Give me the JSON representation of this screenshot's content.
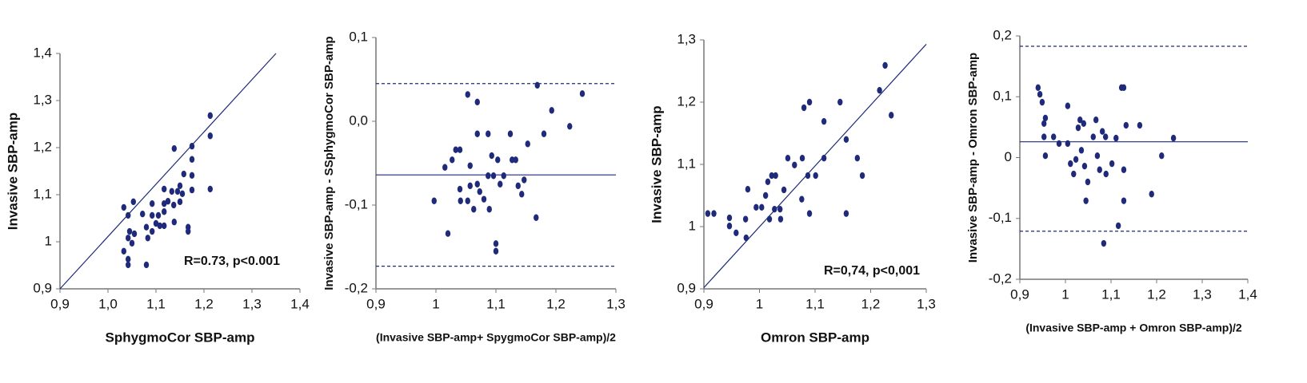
{
  "chart_data": [
    {
      "type": "scatter",
      "x_label": "SphygmoCor SBP-amp",
      "y_label": "Invasive SBP-amp",
      "annotation": "R=0.73, p<0.001",
      "color": "#1f2a7a",
      "xlim": [
        0.9,
        1.4
      ],
      "ylim": [
        0.9,
        1.4
      ],
      "xticks": [
        {
          "value": 0.9,
          "label": "0,9"
        },
        {
          "value": 1.0,
          "label": "1,0"
        },
        {
          "value": 1.1,
          "label": "1,1"
        },
        {
          "value": 1.2,
          "label": "1,2"
        },
        {
          "value": 1.3,
          "label": "1,3"
        },
        {
          "value": 1.4,
          "label": "1,4"
        }
      ],
      "yticks": [
        {
          "value": 0.9,
          "label": "0,9"
        },
        1,
        {
          "value": 1.1,
          "label": "1,1"
        },
        {
          "value": 1.2,
          "label": "1,2"
        },
        {
          "value": 1.3,
          "label": "1,3"
        },
        {
          "value": 1.4,
          "label": "1,4"
        }
      ],
      "fit_line": {
        "x": [
          0.9,
          1.35
        ],
        "y": [
          0.9,
          1.4
        ]
      },
      "x": [
        1.033,
        1.053,
        1.042,
        1.045,
        1.042,
        1.05,
        1.033,
        1.042,
        1.042,
        1.055,
        1.072,
        1.08,
        1.083,
        1.08,
        1.092,
        1.092,
        1.092,
        1.1,
        1.105,
        1.108,
        1.117,
        1.117,
        1.117,
        1.117,
        1.125,
        1.133,
        1.137,
        1.138,
        1.138,
        1.145,
        1.15,
        1.15,
        1.155,
        1.158,
        1.167,
        1.167,
        1.175,
        1.175,
        1.175,
        1.175,
        1.213,
        1.213,
        1.213
      ],
      "values": [
        1.073,
        1.085,
        1.056,
        1.022,
        1.008,
        0.997,
        0.98,
        0.963,
        0.951,
        1.017,
        1.059,
        1.031,
        1.008,
        0.951,
        1.081,
        1.056,
        1.022,
        1.039,
        1.056,
        1.034,
        1.034,
        1.064,
        1.081,
        1.112,
        1.086,
        1.107,
        1.078,
        1.042,
        1.198,
        1.107,
        1.085,
        1.119,
        1.102,
        1.144,
        1.022,
        1.031,
        1.11,
        1.175,
        1.203,
        1.141,
        1.225,
        1.268,
        1.112
      ]
    },
    {
      "type": "bland-altman",
      "x_label": "(Invasive SBP-amp+ SpygmoCor SBP-amp)/2",
      "y_label": "Invasive SBP-amp - SSphygmoCor SBP-amp",
      "color": "#1f2a7a",
      "xlim": [
        0.9,
        1.3
      ],
      "ylim": [
        -0.2,
        0.1
      ],
      "xticks": [
        {
          "value": 0.9,
          "label": "0,9"
        },
        1,
        {
          "value": 1.1,
          "label": "1,1"
        },
        {
          "value": 1.2,
          "label": "1,2"
        },
        {
          "value": 1.3,
          "label": "1,3"
        }
      ],
      "yticks": [
        {
          "value": 0.1,
          "label": "0,1"
        },
        {
          "value": 0.0,
          "label": "0,0"
        },
        {
          "value": -0.1,
          "label": "-0,1"
        },
        {
          "value": -0.2,
          "label": "-0,2"
        }
      ],
      "mean": -0.064,
      "upper_limit": 0.045,
      "lower_limit": -0.173,
      "x": [
        0.997,
        1.015,
        1.02,
        1.027,
        1.033,
        1.04,
        1.04,
        1.041,
        1.053,
        1.053,
        1.057,
        1.057,
        1.063,
        1.069,
        1.069,
        1.069,
        1.073,
        1.08,
        1.087,
        1.087,
        1.089,
        1.093,
        1.096,
        1.1,
        1.1,
        1.103,
        1.107,
        1.113,
        1.124,
        1.127,
        1.133,
        1.137,
        1.143,
        1.147,
        1.153,
        1.167,
        1.169,
        1.18,
        1.193,
        1.223,
        1.244
      ],
      "values": [
        -0.095,
        -0.055,
        -0.134,
        -0.046,
        -0.034,
        -0.034,
        -0.081,
        -0.095,
        -0.095,
        0.032,
        -0.077,
        -0.053,
        -0.105,
        0.023,
        -0.015,
        -0.075,
        -0.084,
        -0.093,
        -0.065,
        -0.015,
        -0.105,
        -0.041,
        -0.065,
        -0.155,
        -0.146,
        -0.046,
        -0.075,
        -0.065,
        -0.015,
        -0.046,
        -0.046,
        -0.077,
        -0.087,
        -0.07,
        -0.027,
        -0.115,
        0.043,
        -0.015,
        0.013,
        -0.006,
        0.033
      ]
    },
    {
      "type": "scatter",
      "x_label": "Omron SBP-amp",
      "y_label": "Invasive SBP-amp",
      "annotation": "R=0,74, p<0,001",
      "color": "#1f2a7a",
      "xlim": [
        0.9,
        1.3
      ],
      "ylim": [
        0.9,
        1.3
      ],
      "xticks": [
        {
          "value": 0.9,
          "label": "0,9"
        },
        1,
        {
          "value": 1.1,
          "label": "1,1"
        },
        {
          "value": 1.2,
          "label": "1,2"
        },
        {
          "value": 1.3,
          "label": "1,3"
        }
      ],
      "yticks": [
        {
          "value": 0.9,
          "label": "0,9"
        },
        1,
        {
          "value": 1.1,
          "label": "1,1"
        },
        {
          "value": 1.2,
          "label": "1,2"
        },
        {
          "value": 1.3,
          "label": "1,3"
        }
      ],
      "fit_line": {
        "x": [
          0.9,
          1.3
        ],
        "y": [
          0.902,
          1.293
        ]
      },
      "x": [
        0.907,
        0.918,
        0.946,
        0.946,
        0.958,
        0.975,
        0.976,
        0.979,
        0.994,
        1.004,
        1.011,
        1.015,
        1.018,
        1.022,
        1.027,
        1.029,
        1.037,
        1.038,
        1.044,
        1.051,
        1.063,
        1.076,
        1.077,
        1.08,
        1.087,
        1.09,
        1.09,
        1.101,
        1.116,
        1.116,
        1.145,
        1.156,
        1.156,
        1.176,
        1.185,
        1.216,
        1.226,
        1.237
      ],
      "values": [
        1.021,
        1.021,
        1.014,
        1.001,
        0.99,
        1.012,
        0.982,
        1.06,
        1.031,
        1.031,
        1.05,
        1.072,
        1.012,
        1.082,
        1.028,
        1.082,
        1.028,
        1.012,
        1.059,
        1.11,
        1.099,
        1.044,
        1.11,
        1.191,
        1.082,
        1.021,
        1.2,
        1.082,
        1.11,
        1.169,
        1.2,
        1.021,
        1.14,
        1.11,
        1.082,
        1.219,
        1.259,
        1.179
      ]
    },
    {
      "type": "bland-altman",
      "x_label": "(Invasive SBP-amp + Omron SBP-amp)/2",
      "y_label": "Invasive SBP-amp - Omron SBP-amp",
      "color": "#1f2a7a",
      "xlim": [
        0.9,
        1.4
      ],
      "ylim": [
        -0.2,
        0.2
      ],
      "xticks": [
        {
          "value": 0.9,
          "label": "0,9"
        },
        1,
        {
          "value": 1.1,
          "label": "1,1"
        },
        {
          "value": 1.2,
          "label": "1,2"
        },
        {
          "value": 1.3,
          "label": "1,3"
        },
        {
          "value": 1.4,
          "label": "1,4"
        }
      ],
      "yticks": [
        {
          "value": 0.2,
          "label": "0,2"
        },
        {
          "value": 0.1,
          "label": "0,1"
        },
        0,
        {
          "value": -0.1,
          "label": "-0,1"
        },
        {
          "value": -0.2,
          "label": "-0,2"
        }
      ],
      "mean": 0.026,
      "upper_limit": 0.183,
      "lower_limit": -0.121,
      "x": [
        0.94,
        0.944,
        0.949,
        0.953,
        0.956,
        0.953,
        0.956,
        0.974,
        0.986,
        1.005,
        1.005,
        1.011,
        1.018,
        1.023,
        1.028,
        1.032,
        1.035,
        1.04,
        1.042,
        1.045,
        1.049,
        1.061,
        1.067,
        1.07,
        1.075,
        1.081,
        1.084,
        1.088,
        1.089,
        1.102,
        1.111,
        1.116,
        1.123,
        1.128,
        1.128,
        1.128,
        1.133,
        1.163,
        1.189,
        1.211,
        1.237
      ],
      "values": [
        0.115,
        0.104,
        0.091,
        0.056,
        0.065,
        0.034,
        0.003,
        0.034,
        0.023,
        0.085,
        0.023,
        -0.01,
        -0.027,
        -0.003,
        0.049,
        0.062,
        0.012,
        0.056,
        -0.014,
        -0.071,
        -0.04,
        0.034,
        0.062,
        0.003,
        -0.02,
        0.043,
        -0.141,
        0.034,
        -0.027,
        -0.01,
        0.032,
        -0.112,
        0.115,
        0.115,
        -0.071,
        -0.02,
        0.053,
        0.053,
        -0.06,
        0.003,
        0.032
      ]
    }
  ]
}
